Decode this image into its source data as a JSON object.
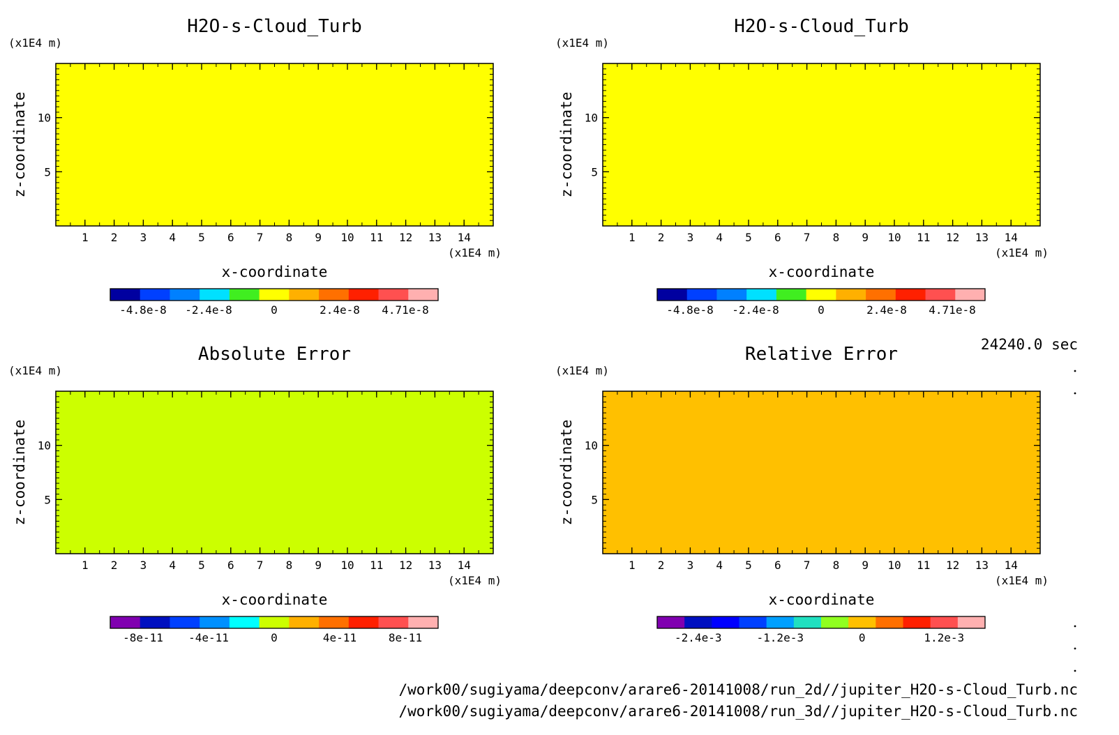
{
  "chart_data": [
    {
      "type": "heatmap",
      "title": "H2O-s-Cloud_Turb",
      "xlabel": "x-coordinate",
      "ylabel": "z-coordinate",
      "x_unit": "(x1E4 m)",
      "y_unit": "(x1E4 m)",
      "xlim": [
        0,
        15
      ],
      "ylim": [
        0,
        15
      ],
      "x_ticks": [
        "1",
        "2",
        "3",
        "4",
        "5",
        "6",
        "7",
        "8",
        "9",
        "10",
        "11",
        "12",
        "13",
        "14"
      ],
      "y_ticks": [
        "5",
        "10"
      ],
      "background_color": "#ffff00",
      "colorbar": {
        "colors": [
          "#0000a0",
          "#0040ff",
          "#0080ff",
          "#00e0ff",
          "#40ee20",
          "#ffff00",
          "#ffb000",
          "#ff7000",
          "#ff2000",
          "#ff5050",
          "#ffb0b0"
        ],
        "labels": [
          "-4.8e-8",
          "-2.4e-8",
          "0",
          "2.4e-8",
          "4.71e-8"
        ]
      }
    },
    {
      "type": "heatmap",
      "title": "H2O-s-Cloud_Turb",
      "xlabel": "x-coordinate",
      "ylabel": "z-coordinate",
      "x_unit": "(x1E4 m)",
      "y_unit": "(x1E4 m)",
      "xlim": [
        0,
        15
      ],
      "ylim": [
        0,
        15
      ],
      "x_ticks": [
        "1",
        "2",
        "3",
        "4",
        "5",
        "6",
        "7",
        "8",
        "9",
        "10",
        "11",
        "12",
        "13",
        "14"
      ],
      "y_ticks": [
        "5",
        "10"
      ],
      "background_color": "#ffff00",
      "colorbar": {
        "colors": [
          "#0000a0",
          "#0040ff",
          "#0080ff",
          "#00e0ff",
          "#40ee20",
          "#ffff00",
          "#ffb000",
          "#ff7000",
          "#ff2000",
          "#ff5050",
          "#ffb0b0"
        ],
        "labels": [
          "-4.8e-8",
          "-2.4e-8",
          "0",
          "2.4e-8",
          "4.71e-8"
        ]
      }
    },
    {
      "type": "heatmap",
      "title": "Absolute Error",
      "xlabel": "x-coordinate",
      "ylabel": "z-coordinate",
      "x_unit": "(x1E4 m)",
      "y_unit": "(x1E4 m)",
      "xlim": [
        0,
        15
      ],
      "ylim": [
        0,
        15
      ],
      "x_ticks": [
        "1",
        "2",
        "3",
        "4",
        "5",
        "6",
        "7",
        "8",
        "9",
        "10",
        "11",
        "12",
        "13",
        "14"
      ],
      "y_ticks": [
        "5",
        "10"
      ],
      "background_color": "#ccff00",
      "colorbar": {
        "colors": [
          "#8000b0",
          "#0010c0",
          "#0040ff",
          "#0090ff",
          "#00ffff",
          "#ccff00",
          "#ffb000",
          "#ff7000",
          "#ff2000",
          "#ff5050",
          "#ffb0b0"
        ],
        "labels": [
          "-8e-11",
          "-4e-11",
          "0",
          "4e-11",
          "8e-11"
        ]
      }
    },
    {
      "type": "heatmap",
      "title": "Relative Error",
      "xlabel": "x-coordinate",
      "ylabel": "z-coordinate",
      "x_unit": "(x1E4 m)",
      "y_unit": "(x1E4 m)",
      "xlim": [
        0,
        15
      ],
      "ylim": [
        0,
        15
      ],
      "x_ticks": [
        "1",
        "2",
        "3",
        "4",
        "5",
        "6",
        "7",
        "8",
        "9",
        "10",
        "11",
        "12",
        "13",
        "14"
      ],
      "y_ticks": [
        "5",
        "10"
      ],
      "background_color": "#ffc000",
      "colorbar": {
        "colors": [
          "#8000b0",
          "#0010c0",
          "#0000ff",
          "#0040ff",
          "#00a0ff",
          "#20e0c0",
          "#90ff20",
          "#ffc000",
          "#ff7000",
          "#ff2000",
          "#ff5050",
          "#ffb0b0"
        ],
        "labels": [
          "-2.4e-3",
          "-1.2e-3",
          "0",
          "1.2e-3"
        ]
      }
    }
  ],
  "info": {
    "time": "24240.0 sec",
    "file_lines": [
      "/work00/sugiyama/deepconv/arare6-20141008/run_2d//jupiter_H2O-s-Cloud_Turb.nc",
      "/work00/sugiyama/deepconv/arare6-20141008/run_3d//jupiter_H2O-s-Cloud_Turb.nc"
    ]
  }
}
